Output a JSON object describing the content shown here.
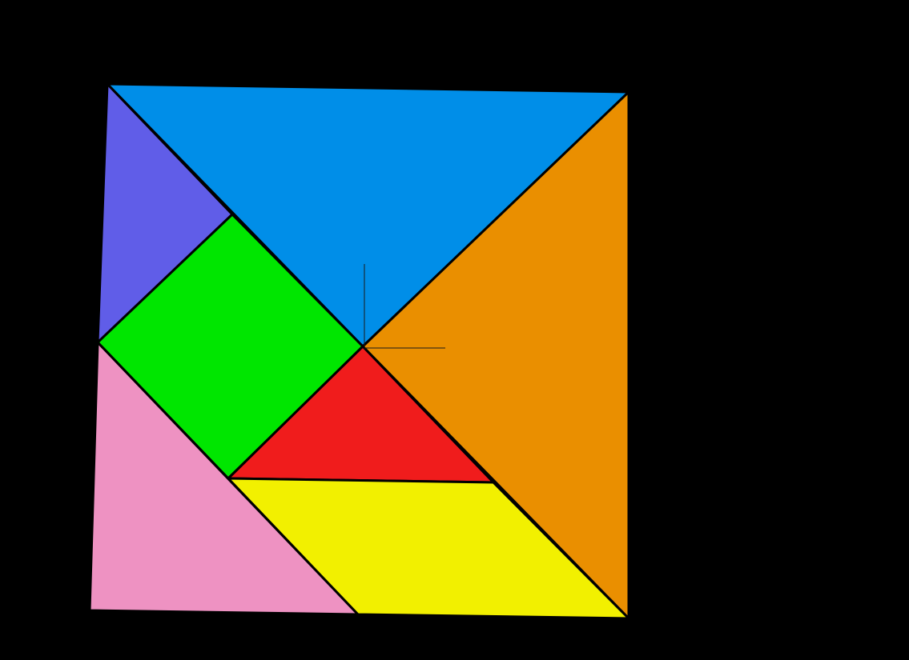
{
  "background": "#000000",
  "puzzle": {
    "name": "tangram",
    "pieces": [
      {
        "id": "large-triangle-top",
        "shape": "triangle",
        "color": "#008EE8"
      },
      {
        "id": "large-triangle-right",
        "shape": "triangle",
        "color": "#EA8F00"
      },
      {
        "id": "small-triangle-top-left",
        "shape": "triangle",
        "color": "#605DE8"
      },
      {
        "id": "square",
        "shape": "square",
        "color": "#00E600"
      },
      {
        "id": "small-triangle-center",
        "shape": "triangle",
        "color": "#F01C1C"
      },
      {
        "id": "medium-triangle-bottom-left",
        "shape": "triangle",
        "color": "#EE92C2"
      },
      {
        "id": "parallelogram",
        "shape": "parallelogram",
        "color": "#F2F000"
      }
    ]
  }
}
